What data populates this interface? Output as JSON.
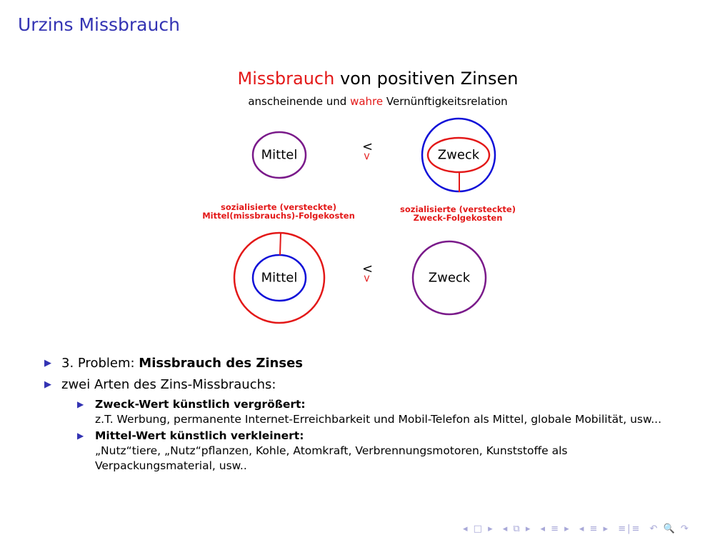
{
  "title": "Urzins Missbrauch",
  "figure": {
    "title_red": "Missbrauch",
    "title_rest": " von positiven Zinsen",
    "subtitle_a": "anscheinende und ",
    "subtitle_red": "wahre",
    "subtitle_b": " Vernünftigkeitsrelation",
    "top_left": "Mittel",
    "top_right": "Zweck",
    "bottom_left": "Mittel",
    "bottom_right": "Zweck",
    "rel_lt": "<",
    "rel_gt": ">",
    "cost_left_1": "sozialisierte (versteckte)",
    "cost_left_2": "Mittel(missbrauchs)-Folgekosten",
    "cost_right_1": "sozialisierte (versteckte)",
    "cost_right_2": "Zweck-Folgekosten",
    "colors": {
      "red": "#e31818",
      "blue": "#1010d8",
      "purple": "#7a1a8a"
    }
  },
  "bullets": [
    {
      "text": "3. Problem: ",
      "bold": "Missbrauch des Zinses"
    },
    {
      "text": "zwei Arten des Zins-Missbrauchs:"
    }
  ],
  "subbullets": [
    {
      "bold": "Zweck-Wert künstlich vergrößert:",
      "text": "z.T. Werbung, permanente Internet-Erreichbarkeit und Mobil-Telefon als Mittel, globale Mobilität, usw..."
    },
    {
      "bold": "Mittel-Wert künstlich verkleinert:",
      "text": "„Nutz“tiere, „Nutz“pflanzen, Kohle, Atomkraft, Verbrennungsmotoren, Kunststoffe als Verpackungsmaterial, usw.."
    }
  ],
  "nav": {
    "bullet": "▶",
    "icons": [
      "◂ □ ▸",
      "◂ ⧉ ▸",
      "◂ ≡ ▸",
      "◂ ≡ ▸",
      "≡|≡",
      "↶ 🔍 ↷"
    ]
  },
  "accent": "#3333b3"
}
